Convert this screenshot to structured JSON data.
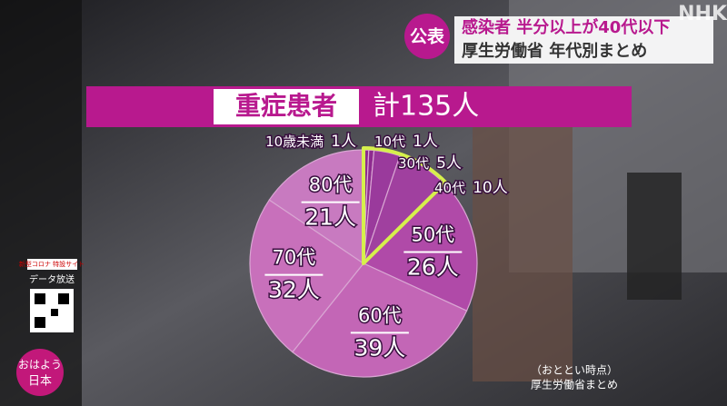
{
  "header": {
    "badge": "公表",
    "headline": "感染者 半分以上が40代以下",
    "subline": "厚生労働省 年代別まとめ"
  },
  "logo": "NHK",
  "program": [
    "おはよう",
    "日本"
  ],
  "side": {
    "site": "新型コロナ 特設サイト",
    "broadcast": "データ放送"
  },
  "chart_data": {
    "type": "pie",
    "title": "重症患者",
    "subtitle": "計135人",
    "categories": [
      "10歳未満",
      "10代",
      "30代",
      "40代",
      "50代",
      "60代",
      "70代",
      "80代"
    ],
    "values": [
      1,
      1,
      5,
      10,
      26,
      39,
      32,
      21
    ],
    "value_labels": [
      "1人",
      "1人",
      "5人",
      "10人",
      "26人",
      "39人",
      "32人",
      "21人"
    ],
    "colors": [
      "#8e2a8f",
      "#8e2a8f",
      "#9a3a9c",
      "#a0409f",
      "#b04aa8",
      "#c366b6",
      "#c870bb",
      "#c87ac0"
    ],
    "highlight": {
      "color": "#d6f04c",
      "categories": [
        "10歳未満",
        "10代",
        "30代",
        "40代"
      ]
    }
  },
  "source": {
    "date": "（おととい時点）",
    "note": "厚生労働省まとめ"
  }
}
